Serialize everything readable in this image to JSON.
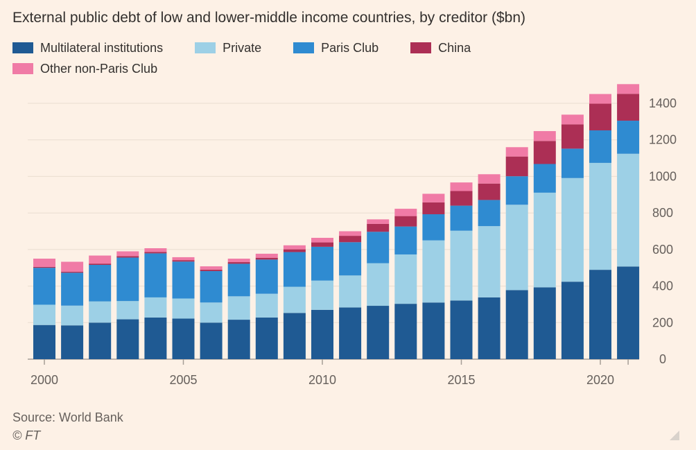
{
  "chart_data": {
    "type": "bar",
    "stacked": true,
    "title": "External public debt of low and lower-middle income countries, by creditor ($bn)",
    "categories": [
      "2000",
      "2001",
      "2002",
      "2003",
      "2004",
      "2005",
      "2006",
      "2007",
      "2008",
      "2009",
      "2010",
      "2011",
      "2012",
      "2013",
      "2014",
      "2015",
      "2016",
      "2017",
      "2018",
      "2019",
      "2020",
      "2021"
    ],
    "x_tick_labels": [
      "2000",
      "2005",
      "2010",
      "2015",
      "2020"
    ],
    "y_ticks": [
      0,
      200,
      400,
      600,
      800,
      1000,
      1200,
      1400
    ],
    "ylim": [
      0,
      1500
    ],
    "y_axis_side": "right",
    "grid": true,
    "legend_placement": "top",
    "series": [
      {
        "name": "Multilateral institutions",
        "color": "#1f5a93",
        "values": [
          187,
          185,
          200,
          218,
          228,
          222,
          200,
          216,
          228,
          253,
          270,
          283,
          292,
          303,
          310,
          321,
          338,
          378,
          393,
          424,
          489,
          507
        ]
      },
      {
        "name": "Private",
        "color": "#9dd0e6",
        "values": [
          111,
          108,
          116,
          100,
          110,
          110,
          110,
          128,
          130,
          143,
          160,
          175,
          233,
          270,
          340,
          382,
          390,
          467,
          518,
          567,
          585,
          617
        ]
      },
      {
        "name": "Paris Club",
        "color": "#2f8bd1",
        "values": [
          202,
          180,
          200,
          238,
          241,
          202,
          172,
          178,
          187,
          190,
          185,
          182,
          172,
          153,
          143,
          137,
          143,
          156,
          157,
          161,
          178,
          181
        ]
      },
      {
        "name": "China",
        "color": "#ac2f55",
        "values": [
          5,
          6,
          7,
          8,
          8,
          8,
          8,
          9,
          10,
          15,
          24,
          35,
          43,
          57,
          65,
          80,
          90,
          108,
          126,
          133,
          146,
          147
        ]
      },
      {
        "name": "Other non-Paris Club",
        "color": "#f07ba6",
        "values": [
          45,
          54,
          44,
          26,
          20,
          16,
          18,
          19,
          22,
          22,
          25,
          25,
          25,
          40,
          47,
          47,
          51,
          51,
          54,
          53,
          53,
          53
        ]
      }
    ]
  },
  "source": "Source: World Bank",
  "copyright": "© FT"
}
